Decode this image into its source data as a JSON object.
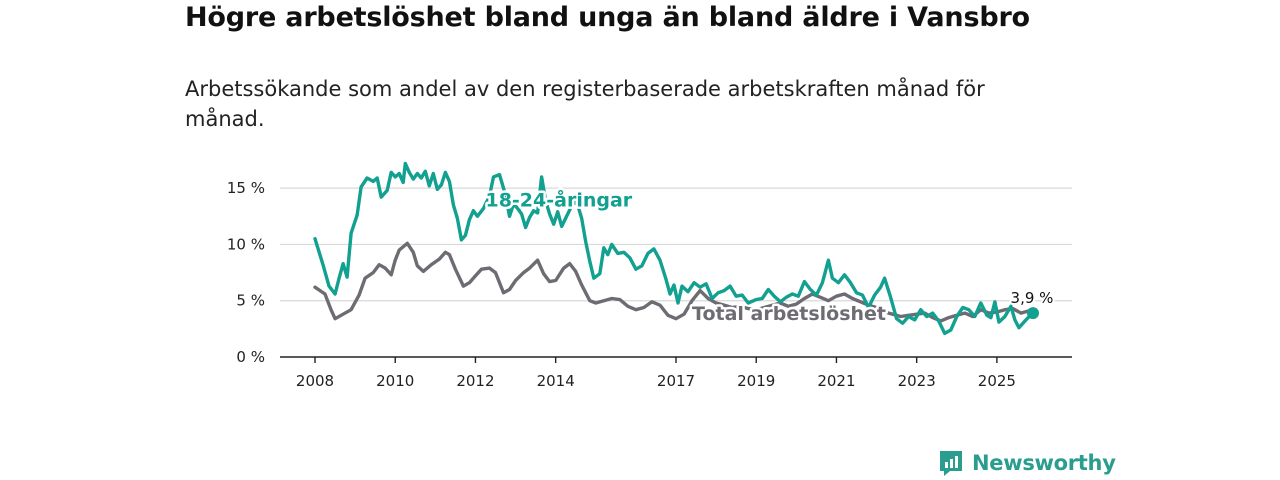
{
  "header": {
    "title": "Högre arbetslöshet bland unga än bland äldre i Vansbro",
    "subtitle": "Arbetssökande som andel av den registerbaserade arbetskraften månad för månad."
  },
  "brand": {
    "name": "Newsworthy",
    "icon": "newsworthy-logo-icon",
    "color": "#2a9d8f"
  },
  "chart_data": {
    "type": "line",
    "title": "Högre arbetslöshet bland unga än bland äldre i Vansbro",
    "subtitle": "Arbetssökande som andel av den registerbaserade arbetskraften månad för månad.",
    "xlabel": "",
    "ylabel": "",
    "xlim": [
      2008.0,
      2026.0
    ],
    "ylim": [
      0,
      17.5
    ],
    "grid": true,
    "x_ticks": [
      {
        "value": 2008,
        "label": "2008"
      },
      {
        "value": 2010,
        "label": "2010"
      },
      {
        "value": 2012,
        "label": "2012"
      },
      {
        "value": 2014,
        "label": "2014"
      },
      {
        "value": 2017,
        "label": "2017"
      },
      {
        "value": 2019,
        "label": "2019"
      },
      {
        "value": 2021,
        "label": "2021"
      },
      {
        "value": 2023,
        "label": "2023"
      },
      {
        "value": 2025,
        "label": "2025"
      }
    ],
    "y_ticks": [
      {
        "value": 0,
        "label": "0 %"
      },
      {
        "value": 5,
        "label": "5 %"
      },
      {
        "value": 10,
        "label": "10 %"
      },
      {
        "value": 15,
        "label": "15 %"
      }
    ],
    "series": [
      {
        "name": "Total arbetslöshet",
        "label": "Total arbetslöshet",
        "color": "#6e6b73",
        "label_at": {
          "x": 2017.4,
          "y": 3.9
        },
        "points": [
          [
            2008.0,
            6.2
          ],
          [
            2008.25,
            5.6
          ],
          [
            2008.4,
            4.2
          ],
          [
            2008.5,
            3.4
          ],
          [
            2008.7,
            3.8
          ],
          [
            2008.9,
            4.2
          ],
          [
            2009.1,
            5.5
          ],
          [
            2009.25,
            7.0
          ],
          [
            2009.45,
            7.5
          ],
          [
            2009.6,
            8.2
          ],
          [
            2009.75,
            7.9
          ],
          [
            2009.9,
            7.3
          ],
          [
            2010.0,
            8.6
          ],
          [
            2010.1,
            9.5
          ],
          [
            2010.3,
            10.1
          ],
          [
            2010.45,
            9.3
          ],
          [
            2010.55,
            8.1
          ],
          [
            2010.7,
            7.6
          ],
          [
            2010.9,
            8.2
          ],
          [
            2011.1,
            8.7
          ],
          [
            2011.25,
            9.3
          ],
          [
            2011.35,
            9.1
          ],
          [
            2011.5,
            7.8
          ],
          [
            2011.7,
            6.3
          ],
          [
            2011.85,
            6.6
          ],
          [
            2012.0,
            7.2
          ],
          [
            2012.15,
            7.8
          ],
          [
            2012.35,
            7.9
          ],
          [
            2012.5,
            7.5
          ],
          [
            2012.7,
            5.7
          ],
          [
            2012.85,
            6.0
          ],
          [
            2013.0,
            6.8
          ],
          [
            2013.2,
            7.5
          ],
          [
            2013.35,
            7.9
          ],
          [
            2013.55,
            8.6
          ],
          [
            2013.7,
            7.4
          ],
          [
            2013.85,
            6.7
          ],
          [
            2014.0,
            6.8
          ],
          [
            2014.2,
            7.9
          ],
          [
            2014.35,
            8.3
          ],
          [
            2014.5,
            7.6
          ],
          [
            2014.65,
            6.4
          ],
          [
            2014.85,
            5.0
          ],
          [
            2015.0,
            4.8
          ],
          [
            2015.2,
            5.0
          ],
          [
            2015.4,
            5.2
          ],
          [
            2015.6,
            5.1
          ],
          [
            2015.8,
            4.5
          ],
          [
            2016.0,
            4.2
          ],
          [
            2016.2,
            4.4
          ],
          [
            2016.4,
            4.9
          ],
          [
            2016.6,
            4.6
          ],
          [
            2016.8,
            3.7
          ],
          [
            2017.0,
            3.4
          ],
          [
            2017.2,
            3.8
          ],
          [
            2017.4,
            5.0
          ],
          [
            2017.6,
            5.9
          ],
          [
            2017.8,
            5.2
          ],
          [
            2018.0,
            4.8
          ],
          [
            2018.2,
            4.6
          ],
          [
            2018.4,
            4.4
          ],
          [
            2018.6,
            4.5
          ],
          [
            2018.8,
            4.3
          ],
          [
            2019.0,
            4.2
          ],
          [
            2019.2,
            4.4
          ],
          [
            2019.4,
            4.6
          ],
          [
            2019.6,
            4.8
          ],
          [
            2019.8,
            4.5
          ],
          [
            2020.0,
            4.7
          ],
          [
            2020.2,
            5.2
          ],
          [
            2020.4,
            5.6
          ],
          [
            2020.6,
            5.3
          ],
          [
            2020.8,
            5.0
          ],
          [
            2021.0,
            5.4
          ],
          [
            2021.2,
            5.6
          ],
          [
            2021.4,
            5.2
          ],
          [
            2021.6,
            4.9
          ],
          [
            2021.8,
            4.6
          ],
          [
            2022.0,
            4.4
          ],
          [
            2022.2,
            4.0
          ],
          [
            2022.4,
            3.8
          ],
          [
            2022.6,
            3.6
          ],
          [
            2022.8,
            3.7
          ],
          [
            2023.0,
            3.8
          ],
          [
            2023.2,
            3.9
          ],
          [
            2023.4,
            3.5
          ],
          [
            2023.6,
            3.2
          ],
          [
            2023.8,
            3.5
          ],
          [
            2024.0,
            3.7
          ],
          [
            2024.2,
            3.9
          ],
          [
            2024.4,
            3.6
          ],
          [
            2024.6,
            4.2
          ],
          [
            2024.8,
            3.9
          ],
          [
            2025.0,
            4.0
          ],
          [
            2025.2,
            4.2
          ],
          [
            2025.4,
            4.3
          ],
          [
            2025.6,
            3.9
          ],
          [
            2025.8,
            4.1
          ],
          [
            2025.9,
            3.9
          ]
        ]
      },
      {
        "name": "18-24-åringar",
        "label": "18-24-åringar",
        "color": "#12a090",
        "label_at": {
          "x": 2012.25,
          "y": 14.0
        },
        "end_value_label": "3,9 %",
        "end_point": {
          "x": 2025.9,
          "y": 3.9
        },
        "points": [
          [
            2008.0,
            10.5
          ],
          [
            2008.2,
            8.2
          ],
          [
            2008.35,
            6.3
          ],
          [
            2008.5,
            5.6
          ],
          [
            2008.6,
            7.0
          ],
          [
            2008.7,
            8.3
          ],
          [
            2008.8,
            7.1
          ],
          [
            2008.9,
            11.0
          ],
          [
            2009.05,
            12.6
          ],
          [
            2009.15,
            15.1
          ],
          [
            2009.3,
            15.9
          ],
          [
            2009.45,
            15.6
          ],
          [
            2009.55,
            15.9
          ],
          [
            2009.65,
            14.2
          ],
          [
            2009.8,
            14.8
          ],
          [
            2009.9,
            16.4
          ],
          [
            2010.0,
            16.0
          ],
          [
            2010.1,
            16.3
          ],
          [
            2010.2,
            15.5
          ],
          [
            2010.25,
            17.2
          ],
          [
            2010.35,
            16.4
          ],
          [
            2010.45,
            15.8
          ],
          [
            2010.55,
            16.3
          ],
          [
            2010.65,
            15.9
          ],
          [
            2010.75,
            16.5
          ],
          [
            2010.85,
            15.2
          ],
          [
            2010.95,
            16.3
          ],
          [
            2011.05,
            14.9
          ],
          [
            2011.15,
            15.3
          ],
          [
            2011.25,
            16.4
          ],
          [
            2011.35,
            15.6
          ],
          [
            2011.45,
            13.5
          ],
          [
            2011.55,
            12.3
          ],
          [
            2011.65,
            10.4
          ],
          [
            2011.75,
            10.8
          ],
          [
            2011.85,
            12.2
          ],
          [
            2011.95,
            13.0
          ],
          [
            2012.05,
            12.5
          ],
          [
            2012.2,
            13.2
          ],
          [
            2012.35,
            14.3
          ],
          [
            2012.45,
            16.0
          ],
          [
            2012.6,
            16.2
          ],
          [
            2012.75,
            14.4
          ],
          [
            2012.85,
            12.5
          ],
          [
            2012.95,
            13.6
          ],
          [
            2013.05,
            13.2
          ],
          [
            2013.15,
            12.7
          ],
          [
            2013.25,
            11.5
          ],
          [
            2013.35,
            12.4
          ],
          [
            2013.45,
            13.0
          ],
          [
            2013.55,
            12.8
          ],
          [
            2013.65,
            16.0
          ],
          [
            2013.75,
            13.9
          ],
          [
            2013.85,
            12.7
          ],
          [
            2013.95,
            11.8
          ],
          [
            2014.05,
            12.9
          ],
          [
            2014.15,
            11.6
          ],
          [
            2014.3,
            12.7
          ],
          [
            2014.45,
            13.8
          ],
          [
            2014.55,
            13.5
          ],
          [
            2014.65,
            12.3
          ],
          [
            2014.75,
            10.2
          ],
          [
            2014.85,
            8.5
          ],
          [
            2014.95,
            7.0
          ],
          [
            2015.1,
            7.4
          ],
          [
            2015.2,
            9.7
          ],
          [
            2015.3,
            9.1
          ],
          [
            2015.4,
            10.0
          ],
          [
            2015.55,
            9.2
          ],
          [
            2015.7,
            9.3
          ],
          [
            2015.85,
            8.8
          ],
          [
            2016.0,
            7.8
          ],
          [
            2016.15,
            8.1
          ],
          [
            2016.3,
            9.2
          ],
          [
            2016.45,
            9.6
          ],
          [
            2016.6,
            8.6
          ],
          [
            2016.75,
            6.9
          ],
          [
            2016.85,
            5.6
          ],
          [
            2016.95,
            6.4
          ],
          [
            2017.05,
            4.8
          ],
          [
            2017.15,
            6.3
          ],
          [
            2017.3,
            5.8
          ],
          [
            2017.45,
            6.6
          ],
          [
            2017.6,
            6.2
          ],
          [
            2017.75,
            6.5
          ],
          [
            2017.9,
            5.2
          ],
          [
            2018.05,
            5.7
          ],
          [
            2018.2,
            5.9
          ],
          [
            2018.35,
            6.3
          ],
          [
            2018.5,
            5.4
          ],
          [
            2018.65,
            5.5
          ],
          [
            2018.8,
            4.8
          ],
          [
            2019.0,
            5.1
          ],
          [
            2019.15,
            5.2
          ],
          [
            2019.3,
            6.0
          ],
          [
            2019.45,
            5.4
          ],
          [
            2019.6,
            4.9
          ],
          [
            2019.75,
            5.3
          ],
          [
            2019.9,
            5.6
          ],
          [
            2020.05,
            5.4
          ],
          [
            2020.2,
            6.7
          ],
          [
            2020.35,
            6.0
          ],
          [
            2020.5,
            5.5
          ],
          [
            2020.65,
            6.6
          ],
          [
            2020.8,
            8.6
          ],
          [
            2020.9,
            7.0
          ],
          [
            2021.05,
            6.6
          ],
          [
            2021.2,
            7.3
          ],
          [
            2021.35,
            6.6
          ],
          [
            2021.5,
            5.7
          ],
          [
            2021.65,
            5.5
          ],
          [
            2021.8,
            4.4
          ],
          [
            2021.95,
            5.5
          ],
          [
            2022.1,
            6.2
          ],
          [
            2022.2,
            7.0
          ],
          [
            2022.35,
            5.3
          ],
          [
            2022.5,
            3.4
          ],
          [
            2022.65,
            3.0
          ],
          [
            2022.8,
            3.6
          ],
          [
            2022.95,
            3.3
          ],
          [
            2023.1,
            4.2
          ],
          [
            2023.25,
            3.6
          ],
          [
            2023.4,
            3.9
          ],
          [
            2023.55,
            3.2
          ],
          [
            2023.7,
            2.1
          ],
          [
            2023.85,
            2.4
          ],
          [
            2024.0,
            3.6
          ],
          [
            2024.15,
            4.4
          ],
          [
            2024.3,
            4.2
          ],
          [
            2024.45,
            3.6
          ],
          [
            2024.6,
            4.8
          ],
          [
            2024.75,
            3.7
          ],
          [
            2024.85,
            3.5
          ],
          [
            2024.95,
            4.9
          ],
          [
            2025.05,
            3.1
          ],
          [
            2025.2,
            3.6
          ],
          [
            2025.35,
            4.5
          ],
          [
            2025.45,
            3.3
          ],
          [
            2025.55,
            2.6
          ],
          [
            2025.65,
            3.0
          ],
          [
            2025.75,
            3.4
          ],
          [
            2025.9,
            3.9
          ]
        ]
      }
    ]
  }
}
